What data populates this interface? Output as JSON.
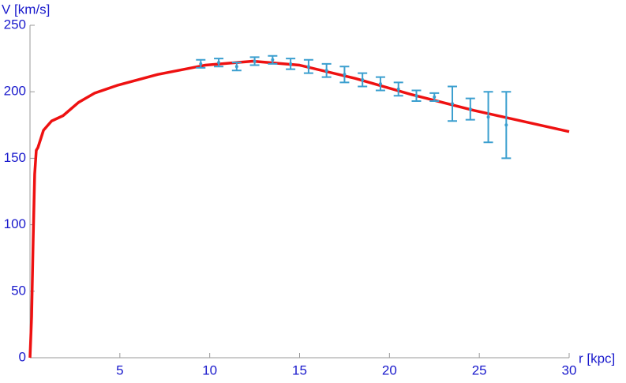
{
  "chart_data": {
    "type": "line",
    "xlabel": "r [kpc]",
    "ylabel": "V [km/s]",
    "xlim": [
      0,
      30
    ],
    "ylim": [
      0,
      250
    ],
    "xticks": [
      5,
      10,
      15,
      20,
      25,
      30
    ],
    "yticks": [
      0,
      50,
      100,
      150,
      200,
      250
    ],
    "series": [
      {
        "style": "line",
        "color": "#ee1111",
        "x": [
          0,
          0.09,
          0.18,
          0.26,
          0.35,
          0.44,
          0.75,
          1.2,
          1.84,
          2.7,
          3.6,
          4.9,
          7.1,
          9.75,
          12.4,
          15,
          18.1,
          21.2,
          24.7,
          30
        ],
        "values": [
          0,
          31,
          91,
          138,
          156,
          158,
          171,
          178,
          182,
          192,
          199,
          205,
          213,
          220,
          223,
          220,
          210,
          198,
          186,
          170
        ]
      },
      {
        "style": "errorbar",
        "color": "#3b9fcf",
        "x": [
          9.5,
          10.5,
          11.5,
          12.5,
          13.5,
          14.5,
          15.5,
          16.5,
          17.5,
          18.5,
          19.5,
          20.5,
          21.5,
          22.5,
          23.5,
          24.5,
          25.5,
          26.5
        ],
        "values": [
          221,
          222,
          219,
          223,
          224,
          221,
          219,
          216,
          213,
          209,
          206,
          202,
          197,
          196,
          191,
          187,
          181,
          175
        ],
        "errors": [
          3,
          3,
          3,
          3,
          3,
          4,
          5,
          5,
          6,
          5,
          5,
          5,
          4,
          3,
          13,
          8,
          19,
          25
        ]
      }
    ]
  }
}
